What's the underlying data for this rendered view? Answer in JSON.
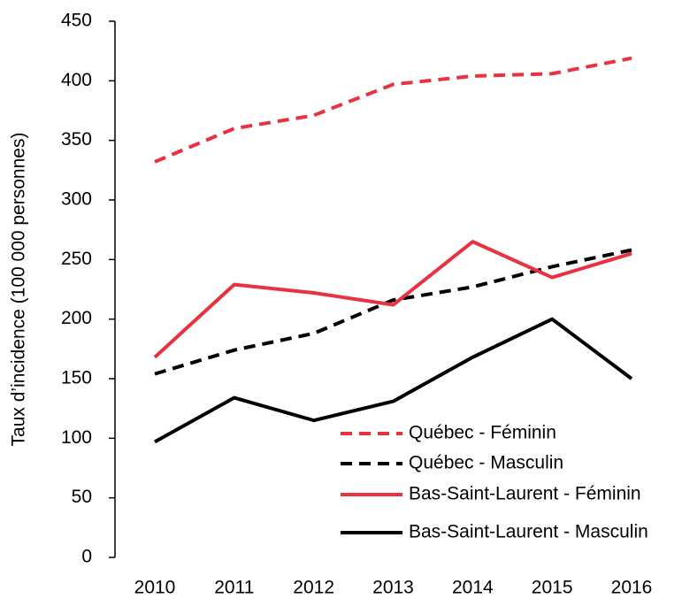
{
  "chart_data": {
    "type": "line",
    "y_label": "Taux d’incidence (100 000 personnes)",
    "categories": [
      "2010",
      "2011",
      "2012",
      "2013",
      "2014",
      "2015",
      "2016"
    ],
    "series": [
      {
        "name": "Québec - Féminin",
        "color": "#e8323f",
        "dashed": true,
        "values": [
          332,
          360,
          371,
          397,
          404,
          406,
          419
        ]
      },
      {
        "name": "Québec - Masculin",
        "color": "#000000",
        "dashed": true,
        "values": [
          154,
          174,
          188,
          216,
          227,
          244,
          258
        ]
      },
      {
        "name": "Bas-Saint-Laurent - Féminin",
        "color": "#e8323f",
        "dashed": false,
        "values": [
          168,
          229,
          222,
          212,
          265,
          235,
          255
        ]
      },
      {
        "name": "Bas-Saint-Laurent - Masculin",
        "color": "#000000",
        "dashed": false,
        "values": [
          97,
          134,
          115,
          131,
          168,
          200,
          150
        ]
      }
    ],
    "ylim": [
      0,
      450
    ],
    "yticks": [
      0,
      50,
      100,
      150,
      200,
      250,
      300,
      350,
      400,
      450
    ],
    "grid": false,
    "legend": "lower-right"
  }
}
